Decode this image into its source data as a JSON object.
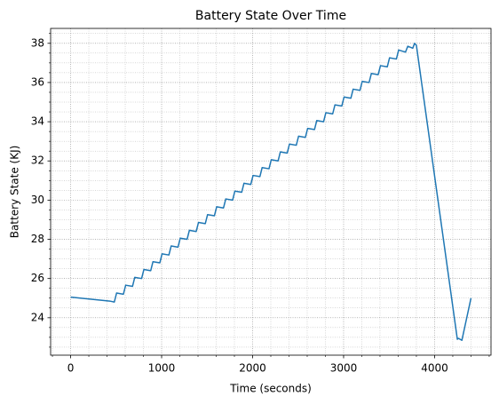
{
  "chart_data": {
    "type": "line",
    "title": "Battery State Over Time",
    "xlabel": "Time (seconds)",
    "ylabel": "Battery State (KJ)",
    "x": [
      0,
      430,
      480,
      505,
      580,
      605,
      680,
      705,
      780,
      805,
      880,
      905,
      980,
      1005,
      1080,
      1105,
      1180,
      1205,
      1280,
      1305,
      1380,
      1405,
      1480,
      1505,
      1580,
      1605,
      1680,
      1705,
      1780,
      1805,
      1880,
      1905,
      1980,
      2005,
      2080,
      2105,
      2180,
      2205,
      2280,
      2305,
      2380,
      2405,
      2480,
      2505,
      2580,
      2605,
      2680,
      2705,
      2780,
      2805,
      2880,
      2905,
      2980,
      3005,
      3080,
      3105,
      3180,
      3205,
      3280,
      3305,
      3380,
      3405,
      3480,
      3505,
      3580,
      3605,
      3680,
      3705,
      3760,
      3780,
      3800,
      4250,
      4260,
      4300,
      4400
    ],
    "series": [
      {
        "name": "Battery State",
        "color": "#1f77b4",
        "values": [
          25.05,
          24.85,
          24.8,
          25.26,
          25.2,
          25.66,
          25.6,
          26.06,
          26.0,
          26.46,
          26.4,
          26.86,
          26.8,
          27.26,
          27.2,
          27.66,
          27.6,
          28.06,
          28.0,
          28.46,
          28.4,
          28.86,
          28.8,
          29.26,
          29.2,
          29.66,
          29.6,
          30.06,
          30.0,
          30.46,
          30.4,
          30.86,
          30.8,
          31.26,
          31.2,
          31.66,
          31.6,
          32.06,
          32.0,
          32.46,
          32.4,
          32.86,
          32.8,
          33.26,
          33.2,
          33.66,
          33.6,
          34.06,
          34.0,
          34.46,
          34.4,
          34.86,
          34.8,
          35.26,
          35.2,
          35.66,
          35.6,
          36.06,
          36.0,
          36.46,
          36.4,
          36.86,
          36.8,
          37.26,
          37.2,
          37.66,
          37.55,
          37.85,
          37.75,
          38.0,
          37.9,
          22.9,
          22.95,
          22.85,
          25.0
        ]
      }
    ],
    "xlim": [
      -220,
      4620
    ],
    "ylim": [
      22.09,
      38.76
    ],
    "xticks": [
      0,
      1000,
      2000,
      3000,
      4000
    ],
    "yticks": [
      24,
      26,
      28,
      30,
      32,
      34,
      36,
      38
    ],
    "xminorticks": [
      -200,
      200,
      400,
      600,
      800,
      1200,
      1400,
      1600,
      1800,
      2200,
      2400,
      2600,
      2800,
      3200,
      3400,
      3600,
      3800,
      4200,
      4400,
      4600
    ],
    "yminorticks": [
      22.5,
      23,
      23.5,
      24.5,
      25,
      25.5,
      26.5,
      27,
      27.5,
      28.5,
      29,
      29.5,
      30.5,
      31,
      31.5,
      32.5,
      33,
      33.5,
      34.5,
      35,
      35.5,
      36.5,
      37,
      37.5,
      38.5
    ],
    "grid": true
  }
}
